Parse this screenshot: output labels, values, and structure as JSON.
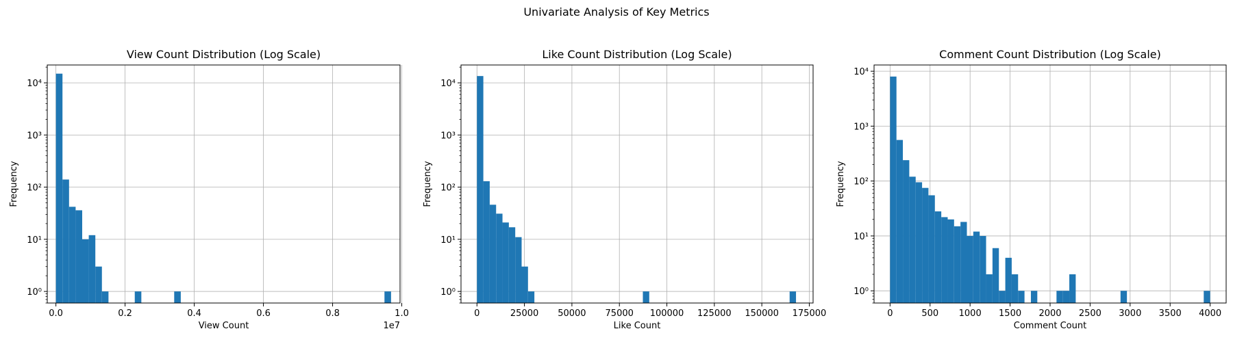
{
  "figure": {
    "suptitle": "Univariate Analysis of Key Metrics"
  },
  "chart_data": [
    {
      "type": "bar",
      "subtype": "histogram",
      "title": "View Count Distribution (Log Scale)",
      "xlabel": "View Count",
      "ylabel": "Frequency",
      "x_offset_label": "1e7",
      "yscale": "log",
      "grid": true,
      "bar_color": "#1f77b4",
      "xlim": [
        -250000,
        9950000
      ],
      "ylim": [
        0.6,
        22000
      ],
      "x_ticks": [
        0,
        2000000,
        4000000,
        6000000,
        8000000,
        10000000
      ],
      "x_tick_labels": [
        "0.0",
        "0.2",
        "0.4",
        "0.6",
        "0.8",
        "1.0"
      ],
      "y_ticks": [
        1,
        10,
        100,
        1000,
        10000
      ],
      "y_tick_labels": [
        "10⁰",
        "10¹",
        "10²",
        "10³",
        "10⁴"
      ],
      "bins": [
        {
          "x0": 0,
          "x1": 190000,
          "count": 15000
        },
        {
          "x0": 190000,
          "x1": 380000,
          "count": 140
        },
        {
          "x0": 380000,
          "x1": 570000,
          "count": 42
        },
        {
          "x0": 570000,
          "x1": 760000,
          "count": 36
        },
        {
          "x0": 760000,
          "x1": 950000,
          "count": 10
        },
        {
          "x0": 950000,
          "x1": 1140000,
          "count": 12
        },
        {
          "x0": 1140000,
          "x1": 1330000,
          "count": 3
        },
        {
          "x0": 1330000,
          "x1": 1520000,
          "count": 1
        },
        {
          "x0": 2280000,
          "x1": 2470000,
          "count": 1
        },
        {
          "x0": 3420000,
          "x1": 3610000,
          "count": 1
        },
        {
          "x0": 9500000,
          "x1": 9690000,
          "count": 1
        }
      ]
    },
    {
      "type": "bar",
      "subtype": "histogram",
      "title": "Like Count Distribution (Log Scale)",
      "xlabel": "Like Count",
      "ylabel": "Frequency",
      "yscale": "log",
      "grid": true,
      "bar_color": "#1f77b4",
      "xlim": [
        -8400,
        177000
      ],
      "ylim": [
        0.6,
        22000
      ],
      "x_ticks": [
        0,
        25000,
        50000,
        75000,
        100000,
        125000,
        150000,
        175000
      ],
      "x_tick_labels": [
        "0",
        "25000",
        "50000",
        "75000",
        "100000",
        "125000",
        "150000",
        "175000"
      ],
      "y_ticks": [
        1,
        10,
        100,
        1000,
        10000
      ],
      "y_tick_labels": [
        "10⁰",
        "10¹",
        "10²",
        "10³",
        "10⁴"
      ],
      "bins": [
        {
          "x0": 0,
          "x1": 3360,
          "count": 13500
        },
        {
          "x0": 3360,
          "x1": 6720,
          "count": 130
        },
        {
          "x0": 6720,
          "x1": 10080,
          "count": 46
        },
        {
          "x0": 10080,
          "x1": 13440,
          "count": 31
        },
        {
          "x0": 13440,
          "x1": 16800,
          "count": 21
        },
        {
          "x0": 16800,
          "x1": 20160,
          "count": 17
        },
        {
          "x0": 20160,
          "x1": 23520,
          "count": 11
        },
        {
          "x0": 23520,
          "x1": 26880,
          "count": 3
        },
        {
          "x0": 26880,
          "x1": 30240,
          "count": 1
        },
        {
          "x0": 87360,
          "x1": 90720,
          "count": 1
        },
        {
          "x0": 164640,
          "x1": 168000,
          "count": 1
        }
      ]
    },
    {
      "type": "bar",
      "subtype": "histogram",
      "title": "Comment Count Distribution (Log Scale)",
      "xlabel": "Comment Count",
      "ylabel": "Frequency",
      "yscale": "log",
      "grid": true,
      "bar_color": "#1f77b4",
      "xlim": [
        -200,
        4200
      ],
      "ylim": [
        0.6,
        13000
      ],
      "x_ticks": [
        0,
        500,
        1000,
        1500,
        2000,
        2500,
        3000,
        3500,
        4000
      ],
      "x_tick_labels": [
        "0",
        "500",
        "1000",
        "1500",
        "2000",
        "2500",
        "3000",
        "3500",
        "4000"
      ],
      "y_ticks": [
        1,
        10,
        100,
        1000,
        10000
      ],
      "y_tick_labels": [
        "10⁰",
        "10¹",
        "10²",
        "10³",
        "10⁴"
      ],
      "bins": [
        {
          "x0": 0,
          "x1": 80,
          "count": 8000
        },
        {
          "x0": 80,
          "x1": 160,
          "count": 560
        },
        {
          "x0": 160,
          "x1": 240,
          "count": 240
        },
        {
          "x0": 240,
          "x1": 320,
          "count": 120
        },
        {
          "x0": 320,
          "x1": 400,
          "count": 95
        },
        {
          "x0": 400,
          "x1": 480,
          "count": 75
        },
        {
          "x0": 480,
          "x1": 560,
          "count": 55
        },
        {
          "x0": 560,
          "x1": 640,
          "count": 28
        },
        {
          "x0": 640,
          "x1": 720,
          "count": 22
        },
        {
          "x0": 720,
          "x1": 800,
          "count": 20
        },
        {
          "x0": 800,
          "x1": 880,
          "count": 15
        },
        {
          "x0": 880,
          "x1": 960,
          "count": 18
        },
        {
          "x0": 960,
          "x1": 1040,
          "count": 10
        },
        {
          "x0": 1040,
          "x1": 1120,
          "count": 12
        },
        {
          "x0": 1120,
          "x1": 1200,
          "count": 10
        },
        {
          "x0": 1200,
          "x1": 1280,
          "count": 2
        },
        {
          "x0": 1280,
          "x1": 1360,
          "count": 6
        },
        {
          "x0": 1360,
          "x1": 1440,
          "count": 1
        },
        {
          "x0": 1440,
          "x1": 1520,
          "count": 4
        },
        {
          "x0": 1520,
          "x1": 1600,
          "count": 2
        },
        {
          "x0": 1600,
          "x1": 1680,
          "count": 1
        },
        {
          "x0": 1760,
          "x1": 1840,
          "count": 1
        },
        {
          "x0": 2080,
          "x1": 2160,
          "count": 1
        },
        {
          "x0": 2160,
          "x1": 2240,
          "count": 1
        },
        {
          "x0": 2240,
          "x1": 2320,
          "count": 2
        },
        {
          "x0": 2880,
          "x1": 2960,
          "count": 1
        },
        {
          "x0": 3920,
          "x1": 4000,
          "count": 1
        }
      ]
    }
  ]
}
